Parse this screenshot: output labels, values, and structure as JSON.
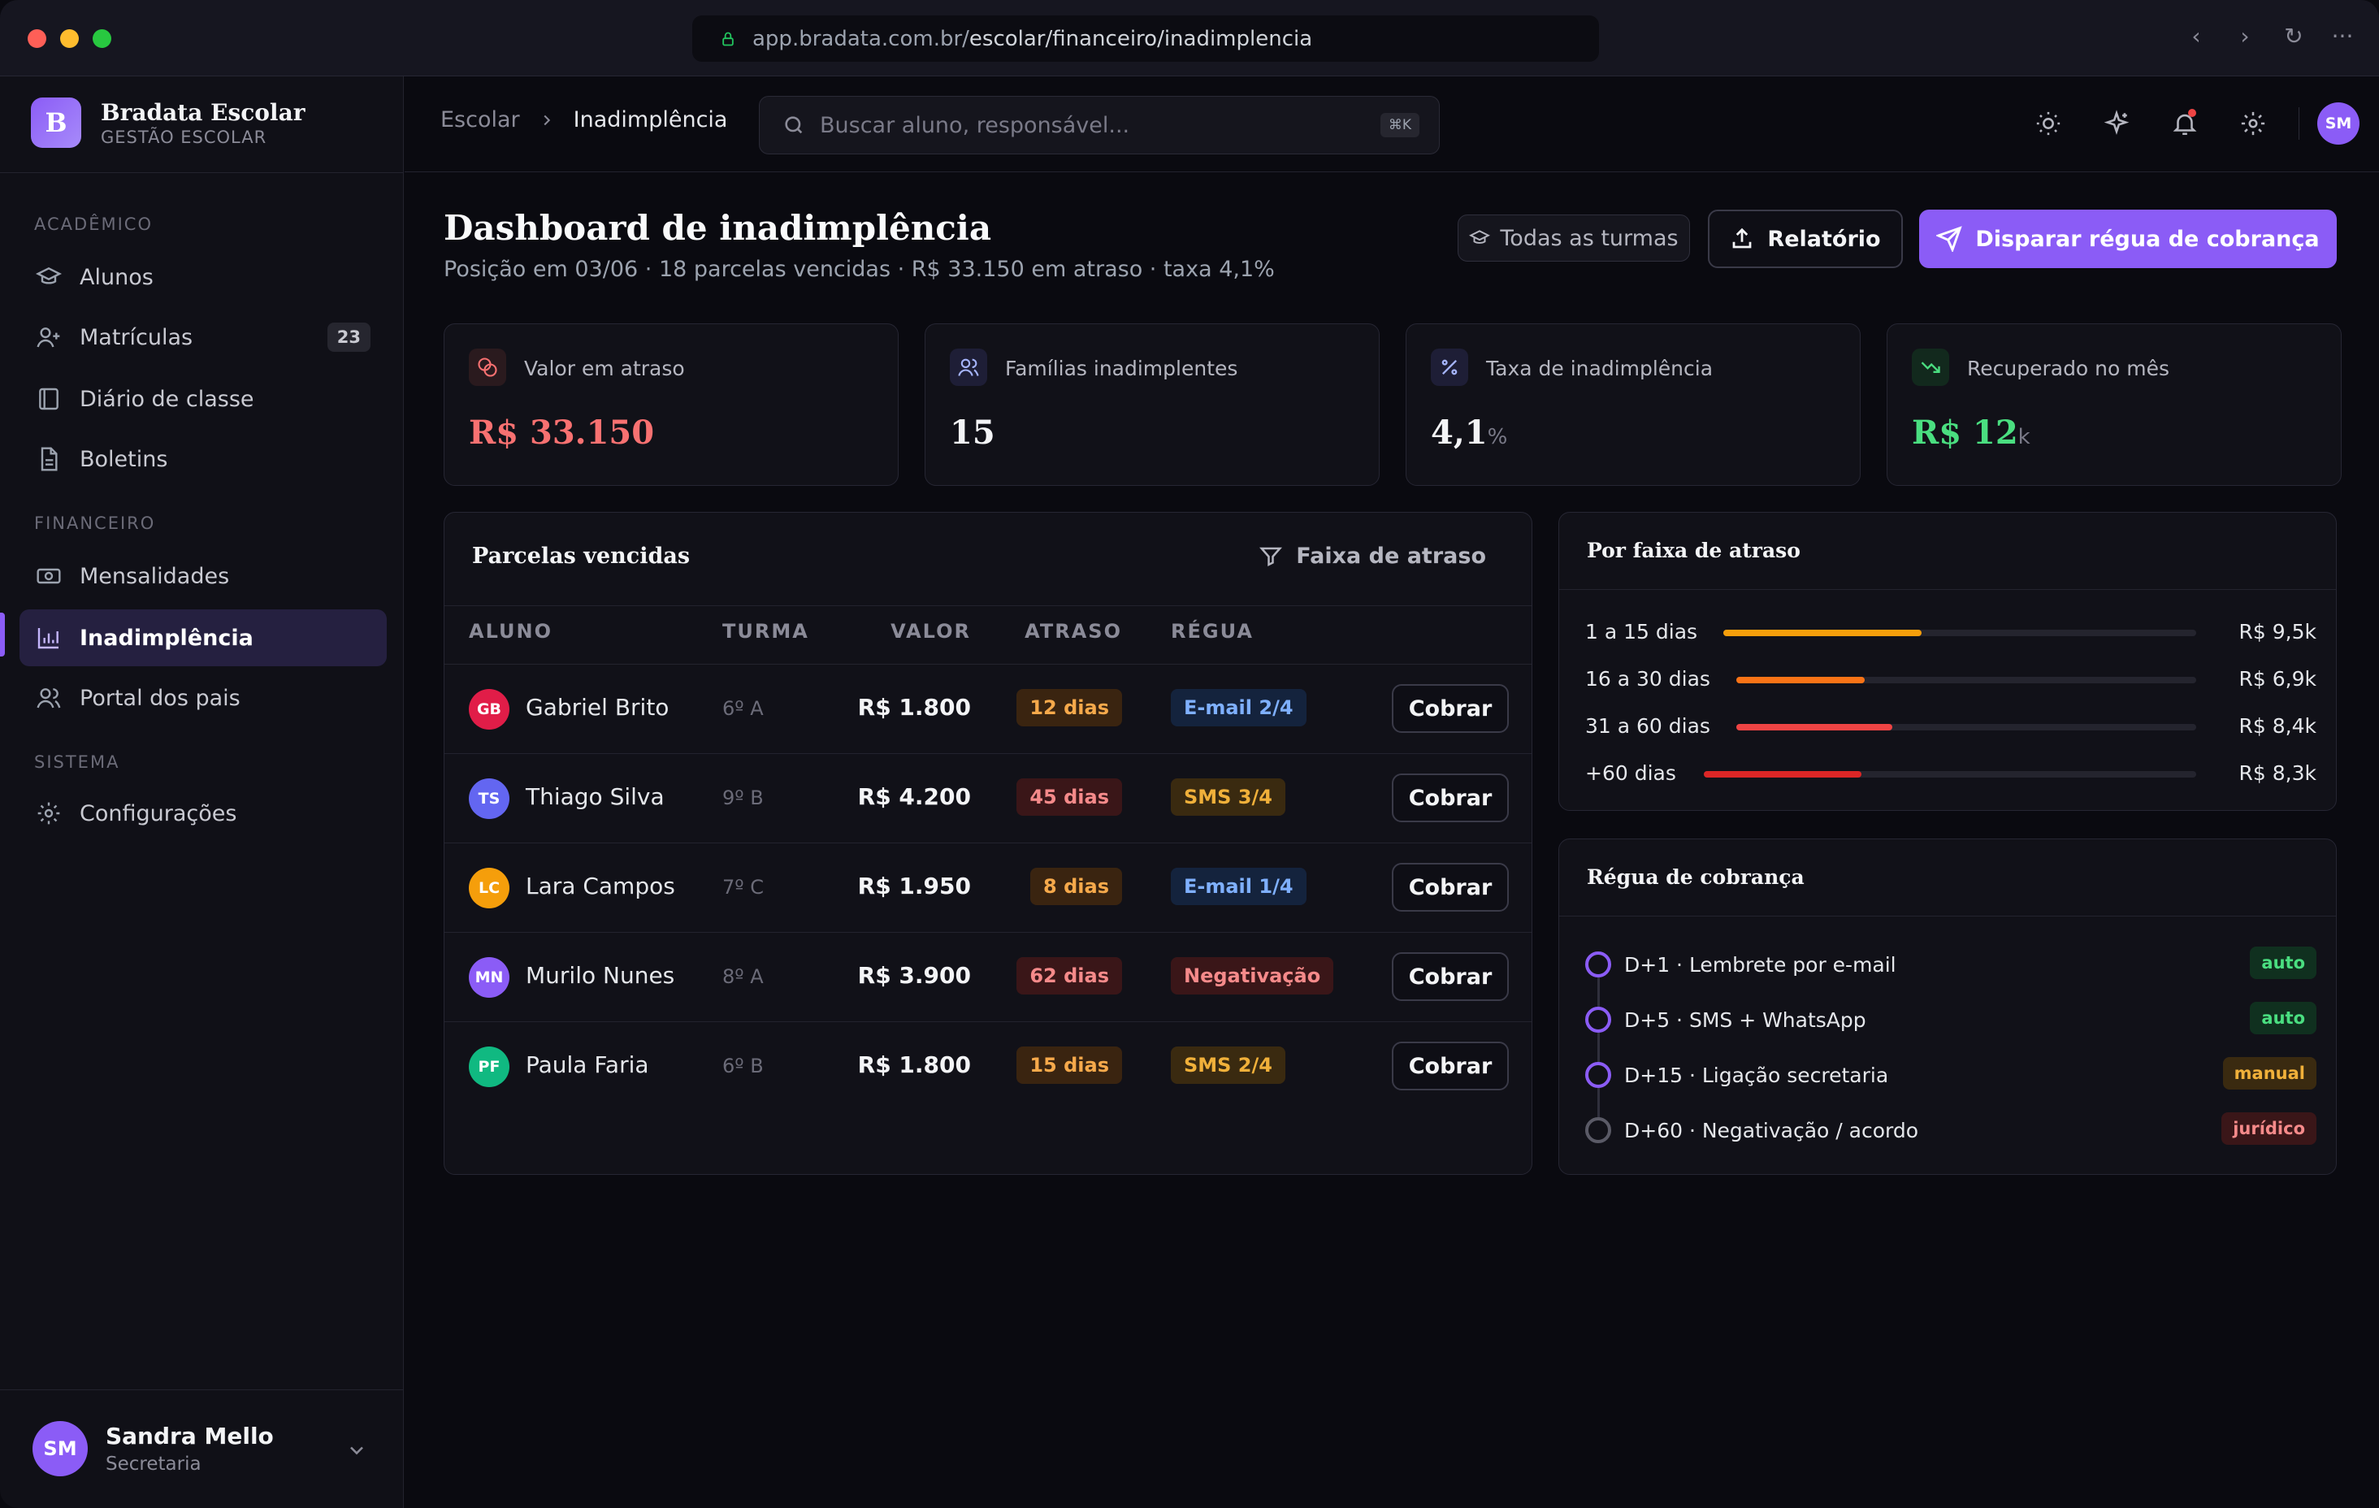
{
  "browser": {
    "url_host": "app.bradata.com.br/",
    "url_path": "escolar/financeiro/inadimplencia"
  },
  "brand": {
    "logo_letter": "B",
    "name": "Bradata Escolar",
    "subtitle": "GESTÃO ESCOLAR"
  },
  "sidebar": {
    "sections": [
      {
        "label": "ACADÊMICO",
        "items": [
          {
            "label": "Alunos",
            "icon": "graduation-cap-icon"
          },
          {
            "label": "Matrículas",
            "icon": "user-plus-icon",
            "badge": "23"
          },
          {
            "label": "Diário de classe",
            "icon": "book-icon"
          },
          {
            "label": "Boletins",
            "icon": "file-text-icon"
          }
        ]
      },
      {
        "label": "FINANCEIRO",
        "items": [
          {
            "label": "Mensalidades",
            "icon": "banknote-icon"
          },
          {
            "label": "Inadimplência",
            "icon": "bar-chart-icon",
            "active": true
          },
          {
            "label": "Portal dos pais",
            "icon": "users-icon"
          }
        ]
      },
      {
        "label": "SISTEMA",
        "items": [
          {
            "label": "Configurações",
            "icon": "gear-icon"
          }
        ]
      }
    ],
    "user": {
      "initials": "SM",
      "name": "Sandra Mello",
      "role": "Secretaria"
    }
  },
  "topbar": {
    "breadcrumb": [
      "Escolar",
      "Inadimplência"
    ],
    "search_placeholder": "Buscar aluno, responsável...",
    "search_shortcut": "⌘K",
    "avatar_initials": "SM"
  },
  "page": {
    "title": "Dashboard de inadimplência",
    "subtitle": "Posição em 03/06 · 18 parcelas vencidas · R$ 33.150 em atraso · taxa 4,1%",
    "filter_label": "Todas as turmas",
    "report_label": "Relatório",
    "primary_label": "Disparar régua de cobrança"
  },
  "kpis": [
    {
      "label": "Valor em atraso",
      "value": "R$ 33.150",
      "unit": "",
      "color": "#f87171"
    },
    {
      "label": "Famílias inadimplentes",
      "value": "15",
      "unit": "",
      "color": "#f3f4f6"
    },
    {
      "label": "Taxa de inadimplência",
      "value": "4,1",
      "unit": "%",
      "color": "#f3f4f6"
    },
    {
      "label": "Recuperado no mês",
      "value": "R$ 12",
      "unit": "k",
      "color": "#4ade80"
    }
  ],
  "parcelas": {
    "title": "Parcelas vencidas",
    "filter_label": "Faixa de atraso",
    "columns": [
      "ALUNO",
      "TURMA",
      "VALOR",
      "ATRASO",
      "RÉGUA"
    ],
    "action_label": "Cobrar",
    "rows": [
      {
        "initials": "GB",
        "color": "#e11d48",
        "name": "Gabriel Brito",
        "turma": "6º A",
        "valor": "R$ 1.800",
        "atraso": "12 dias",
        "atraso_level": "amber",
        "regua": "E-mail 2/4",
        "regua_style": "blue"
      },
      {
        "initials": "TS",
        "color": "#6366f1",
        "name": "Thiago Silva",
        "turma": "9º B",
        "valor": "R$ 4.200",
        "atraso": "45 dias",
        "atraso_level": "red",
        "regua": "SMS 3/4",
        "regua_style": "amber"
      },
      {
        "initials": "LC",
        "color": "#f59e0b",
        "name": "Lara Campos",
        "turma": "7º C",
        "valor": "R$ 1.950",
        "atraso": "8 dias",
        "atraso_level": "amber",
        "regua": "E-mail 1/4",
        "regua_style": "blue"
      },
      {
        "initials": "MN",
        "color": "#8b5cf6",
        "name": "Murilo Nunes",
        "turma": "8º A",
        "valor": "R$ 3.900",
        "atraso": "62 dias",
        "atraso_level": "red",
        "regua": "Negativação",
        "regua_style": "red"
      },
      {
        "initials": "PF",
        "color": "#10b981",
        "name": "Paula Faria",
        "turma": "6º B",
        "valor": "R$ 1.800",
        "atraso": "15 dias",
        "atraso_level": "amber",
        "regua": "SMS 2/4",
        "regua_style": "amber"
      }
    ]
  },
  "faixas": {
    "title": "Por faixa de atraso",
    "items": [
      {
        "label": "1 a 15 dias",
        "value": "R$ 9,5k",
        "fraction": 0.42,
        "color": "#f59e0b"
      },
      {
        "label": "16 a 30 dias",
        "value": "R$ 6,9k",
        "fraction": 0.28,
        "color": "#f97316"
      },
      {
        "label": "31 a 60 dias",
        "value": "R$ 8,4k",
        "fraction": 0.34,
        "color": "#ef4444"
      },
      {
        "label": "+60 dias",
        "value": "R$ 8,3k",
        "fraction": 0.32,
        "color": "#dc2626"
      }
    ]
  },
  "regua": {
    "title": "Régua de cobrança",
    "steps": [
      {
        "label": "D+1 · Lembrete por e-mail",
        "tag": "auto",
        "tag_style": "green",
        "done": true
      },
      {
        "label": "D+5 · SMS + WhatsApp",
        "tag": "auto",
        "tag_style": "green",
        "done": true
      },
      {
        "label": "D+15 · Ligação secretaria",
        "tag": "manual",
        "tag_style": "amber",
        "done": true
      },
      {
        "label": "D+60 · Negativação / acordo",
        "tag": "jurídico",
        "tag_style": "red",
        "done": false
      }
    ]
  }
}
